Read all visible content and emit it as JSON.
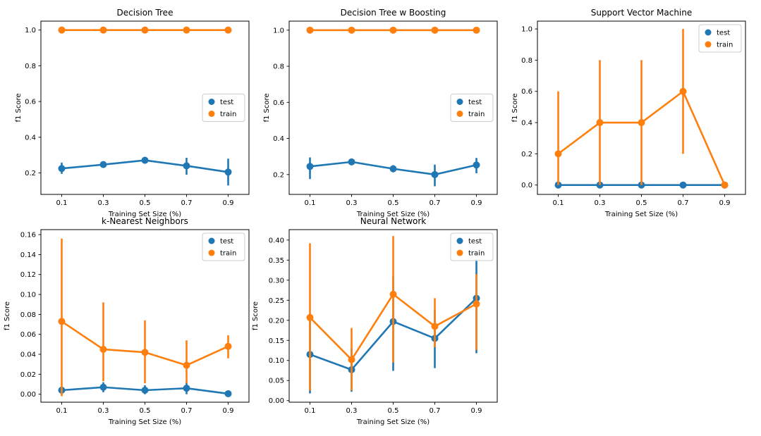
{
  "figure": {
    "background": "#ffffff",
    "colors": {
      "test": "#1f77b4",
      "train": "#ff7f0e",
      "spine": "#000000",
      "legend_border": "#cccccc"
    },
    "legend_labels": [
      "test",
      "train"
    ]
  },
  "chart_data": [
    {
      "type": "line",
      "title": "Decision Tree",
      "xlabel": "Training Set Size (%)",
      "ylabel": "f1 Score",
      "x": [
        0.1,
        0.3,
        0.5,
        0.7,
        0.9
      ],
      "xlim": [
        0,
        1
      ],
      "xticks": [
        0.1,
        0.3,
        0.5,
        0.7,
        0.9
      ],
      "ylim": [
        0.08,
        1.05
      ],
      "yticks": [
        0.2,
        0.4,
        0.6,
        0.8,
        1.0
      ],
      "ytick_decimals": 1,
      "grid": false,
      "legend_position": "center-right",
      "series": [
        {
          "name": "test",
          "color_key": "test",
          "y": [
            0.225,
            0.247,
            0.271,
            0.24,
            0.205
          ],
          "err_lo": [
            0.195,
            0.232,
            0.252,
            0.19,
            0.13
          ],
          "err_hi": [
            0.258,
            0.262,
            0.288,
            0.285,
            0.28
          ]
        },
        {
          "name": "train",
          "color_key": "train",
          "y": [
            1.0,
            1.0,
            1.0,
            1.0,
            1.0
          ],
          "err_lo": [
            1.0,
            1.0,
            1.0,
            1.0,
            1.0
          ],
          "err_hi": [
            1.0,
            1.0,
            1.0,
            1.0,
            1.0
          ]
        }
      ]
    },
    {
      "type": "line",
      "title": "Decision Tree w Boosting",
      "xlabel": "Training Set Size (%)",
      "ylabel": "f1 Score",
      "x": [
        0.1,
        0.3,
        0.5,
        0.7,
        0.9
      ],
      "xlim": [
        0,
        1
      ],
      "xticks": [
        0.1,
        0.3,
        0.5,
        0.7,
        0.9
      ],
      "ylim": [
        0.09,
        1.05
      ],
      "yticks": [
        0.2,
        0.4,
        0.6,
        0.8,
        1.0
      ],
      "ytick_decimals": 1,
      "grid": false,
      "legend_position": "center-right",
      "series": [
        {
          "name": "test",
          "color_key": "test",
          "y": [
            0.245,
            0.27,
            0.232,
            0.2,
            0.253
          ],
          "err_lo": [
            0.175,
            0.256,
            0.212,
            0.135,
            0.207
          ],
          "err_hi": [
            0.295,
            0.285,
            0.252,
            0.255,
            0.292
          ]
        },
        {
          "name": "train",
          "color_key": "train",
          "y": [
            1.0,
            1.0,
            1.0,
            1.0,
            1.0
          ],
          "err_lo": [
            1.0,
            1.0,
            1.0,
            1.0,
            1.0
          ],
          "err_hi": [
            1.0,
            1.0,
            1.0,
            1.0,
            1.0
          ]
        }
      ]
    },
    {
      "type": "line",
      "title": "Support Vector Machine",
      "xlabel": "Training Set Size (%)",
      "ylabel": "f1 Score",
      "x": [
        0.1,
        0.3,
        0.5,
        0.7,
        0.9
      ],
      "xlim": [
        0,
        1
      ],
      "xticks": [
        0.1,
        0.3,
        0.5,
        0.7,
        0.9
      ],
      "ylim": [
        -0.06,
        1.05
      ],
      "yticks": [
        0.0,
        0.2,
        0.4,
        0.6,
        0.8,
        1.0
      ],
      "ytick_decimals": 1,
      "grid": false,
      "legend_position": "upper-right",
      "series": [
        {
          "name": "test",
          "color_key": "test",
          "y": [
            0.0,
            0.0,
            0.0,
            0.0,
            0.0
          ],
          "err_lo": [
            0.0,
            0.0,
            0.0,
            0.0,
            0.0
          ],
          "err_hi": [
            0.0,
            0.0,
            0.0,
            0.0,
            0.0
          ]
        },
        {
          "name": "train",
          "color_key": "train",
          "y": [
            0.2,
            0.4,
            0.4,
            0.6,
            0.0
          ],
          "err_lo": [
            0.0,
            0.0,
            0.0,
            0.2,
            0.0
          ],
          "err_hi": [
            0.6,
            0.8,
            0.8,
            1.0,
            0.0
          ]
        }
      ]
    },
    {
      "type": "line",
      "title": "k-Nearest Neighbors",
      "xlabel": "Training Set Size (%)",
      "ylabel": "f1 Score",
      "x": [
        0.1,
        0.3,
        0.5,
        0.7,
        0.9
      ],
      "xlim": [
        0,
        1
      ],
      "xticks": [
        0.1,
        0.3,
        0.5,
        0.7,
        0.9
      ],
      "ylim": [
        -0.008,
        0.165
      ],
      "yticks": [
        0.0,
        0.02,
        0.04,
        0.06,
        0.08,
        0.1,
        0.12,
        0.14,
        0.16
      ],
      "ytick_decimals": 2,
      "grid": false,
      "legend_position": "upper-right",
      "series": [
        {
          "name": "test",
          "color_key": "test",
          "y": [
            0.004,
            0.007,
            0.004,
            0.006,
            0.0005
          ],
          "err_lo": [
            0.0,
            0.002,
            0.0,
            0.0,
            0.0005
          ],
          "err_hi": [
            0.008,
            0.012,
            0.009,
            0.012,
            0.0005
          ]
        },
        {
          "name": "train",
          "color_key": "train",
          "y": [
            0.073,
            0.045,
            0.042,
            0.029,
            0.048
          ],
          "err_lo": [
            -0.002,
            0.013,
            0.011,
            0.011,
            0.036
          ],
          "err_hi": [
            0.156,
            0.092,
            0.074,
            0.054,
            0.059
          ]
        }
      ]
    },
    {
      "type": "line",
      "title": "Neural Network",
      "xlabel": "Training Set Size (%)",
      "ylabel": "f1 Score",
      "x": [
        0.1,
        0.3,
        0.5,
        0.7,
        0.9
      ],
      "xlim": [
        0,
        1
      ],
      "xticks": [
        0.1,
        0.3,
        0.5,
        0.7,
        0.9
      ],
      "ylim": [
        -0.004,
        0.426
      ],
      "yticks": [
        0.0,
        0.05,
        0.1,
        0.15,
        0.2,
        0.25,
        0.3,
        0.35,
        0.4
      ],
      "ytick_decimals": 2,
      "grid": false,
      "legend_position": "upper-right",
      "series": [
        {
          "name": "test",
          "color_key": "test",
          "y": [
            0.115,
            0.077,
            0.197,
            0.155,
            0.255
          ],
          "err_lo": [
            0.018,
            0.022,
            0.074,
            0.081,
            0.118
          ],
          "err_hi": [
            0.21,
            0.13,
            0.31,
            0.225,
            0.353
          ]
        },
        {
          "name": "train",
          "color_key": "train",
          "y": [
            0.207,
            0.102,
            0.265,
            0.185,
            0.241
          ],
          "err_lo": [
            0.025,
            0.025,
            0.095,
            0.133,
            0.126
          ],
          "err_hi": [
            0.392,
            0.181,
            0.41,
            0.255,
            0.315
          ]
        }
      ]
    }
  ]
}
